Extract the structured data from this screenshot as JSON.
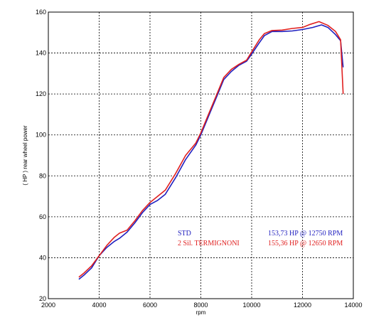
{
  "chart_data": {
    "type": "line",
    "title": "",
    "xlabel": "rpm",
    "ylabel": "( HP )   rear wheel power",
    "xlim": [
      2000,
      14000
    ],
    "ylim": [
      20,
      160
    ],
    "x_ticks": [
      2000,
      4000,
      6000,
      8000,
      10000,
      12000,
      14000
    ],
    "y_ticks": [
      20,
      40,
      60,
      80,
      100,
      120,
      140,
      160
    ],
    "x_tick_labels": [
      "2000",
      "4000",
      "6000",
      "8000",
      "10000",
      "12000",
      "14000"
    ],
    "y_tick_labels": [
      "20",
      "40",
      "60",
      "80",
      "100",
      "120",
      "140",
      "160"
    ],
    "grid": true,
    "legend_position": "bottom-right inside plot",
    "series": [
      {
        "name": "STD",
        "annotation": "153,73 HP @ 12750 RPM",
        "color": "#1f1fbf",
        "points": [
          [
            3200,
            29.5
          ],
          [
            3400,
            31.5
          ],
          [
            3700,
            35
          ],
          [
            4000,
            41
          ],
          [
            4300,
            45
          ],
          [
            4600,
            48
          ],
          [
            4800,
            49.5
          ],
          [
            5100,
            52.5
          ],
          [
            5400,
            57
          ],
          [
            5700,
            62
          ],
          [
            6000,
            66
          ],
          [
            6300,
            68
          ],
          [
            6600,
            71
          ],
          [
            7000,
            79
          ],
          [
            7400,
            88
          ],
          [
            7800,
            95
          ],
          [
            8000,
            100
          ],
          [
            8300,
            109
          ],
          [
            8600,
            118
          ],
          [
            8900,
            127
          ],
          [
            9200,
            131
          ],
          [
            9500,
            134
          ],
          [
            9800,
            136
          ],
          [
            10000,
            139.5
          ],
          [
            10300,
            145
          ],
          [
            10500,
            148.5
          ],
          [
            10800,
            150.5
          ],
          [
            11200,
            150.5
          ],
          [
            11600,
            150.8
          ],
          [
            12000,
            151.5
          ],
          [
            12400,
            152.5
          ],
          [
            12750,
            153.73
          ],
          [
            13000,
            152.5
          ],
          [
            13300,
            149
          ],
          [
            13500,
            146
          ],
          [
            13600,
            133
          ]
        ]
      },
      {
        "name": "2 Sil. TERMIGNONI",
        "annotation": "155,36 HP @ 12650 RPM",
        "color": "#e02020",
        "points": [
          [
            3200,
            30.5
          ],
          [
            3400,
            32.5
          ],
          [
            3700,
            36
          ],
          [
            4000,
            41
          ],
          [
            4300,
            46
          ],
          [
            4600,
            50
          ],
          [
            4800,
            52
          ],
          [
            5100,
            53.5
          ],
          [
            5400,
            58
          ],
          [
            5700,
            63
          ],
          [
            6000,
            67
          ],
          [
            6300,
            70
          ],
          [
            6600,
            73
          ],
          [
            7000,
            81
          ],
          [
            7400,
            90
          ],
          [
            7800,
            96
          ],
          [
            8000,
            101
          ],
          [
            8300,
            110
          ],
          [
            8600,
            119
          ],
          [
            8900,
            128
          ],
          [
            9200,
            132
          ],
          [
            9500,
            134.5
          ],
          [
            9800,
            136.5
          ],
          [
            10000,
            140.5
          ],
          [
            10300,
            146.5
          ],
          [
            10500,
            149.5
          ],
          [
            10800,
            151
          ],
          [
            11200,
            151.2
          ],
          [
            11600,
            152
          ],
          [
            12000,
            152.5
          ],
          [
            12300,
            154
          ],
          [
            12650,
            155.36
          ],
          [
            13000,
            153.5
          ],
          [
            13300,
            150.5
          ],
          [
            13500,
            146.5
          ],
          [
            13600,
            120
          ]
        ]
      }
    ]
  }
}
